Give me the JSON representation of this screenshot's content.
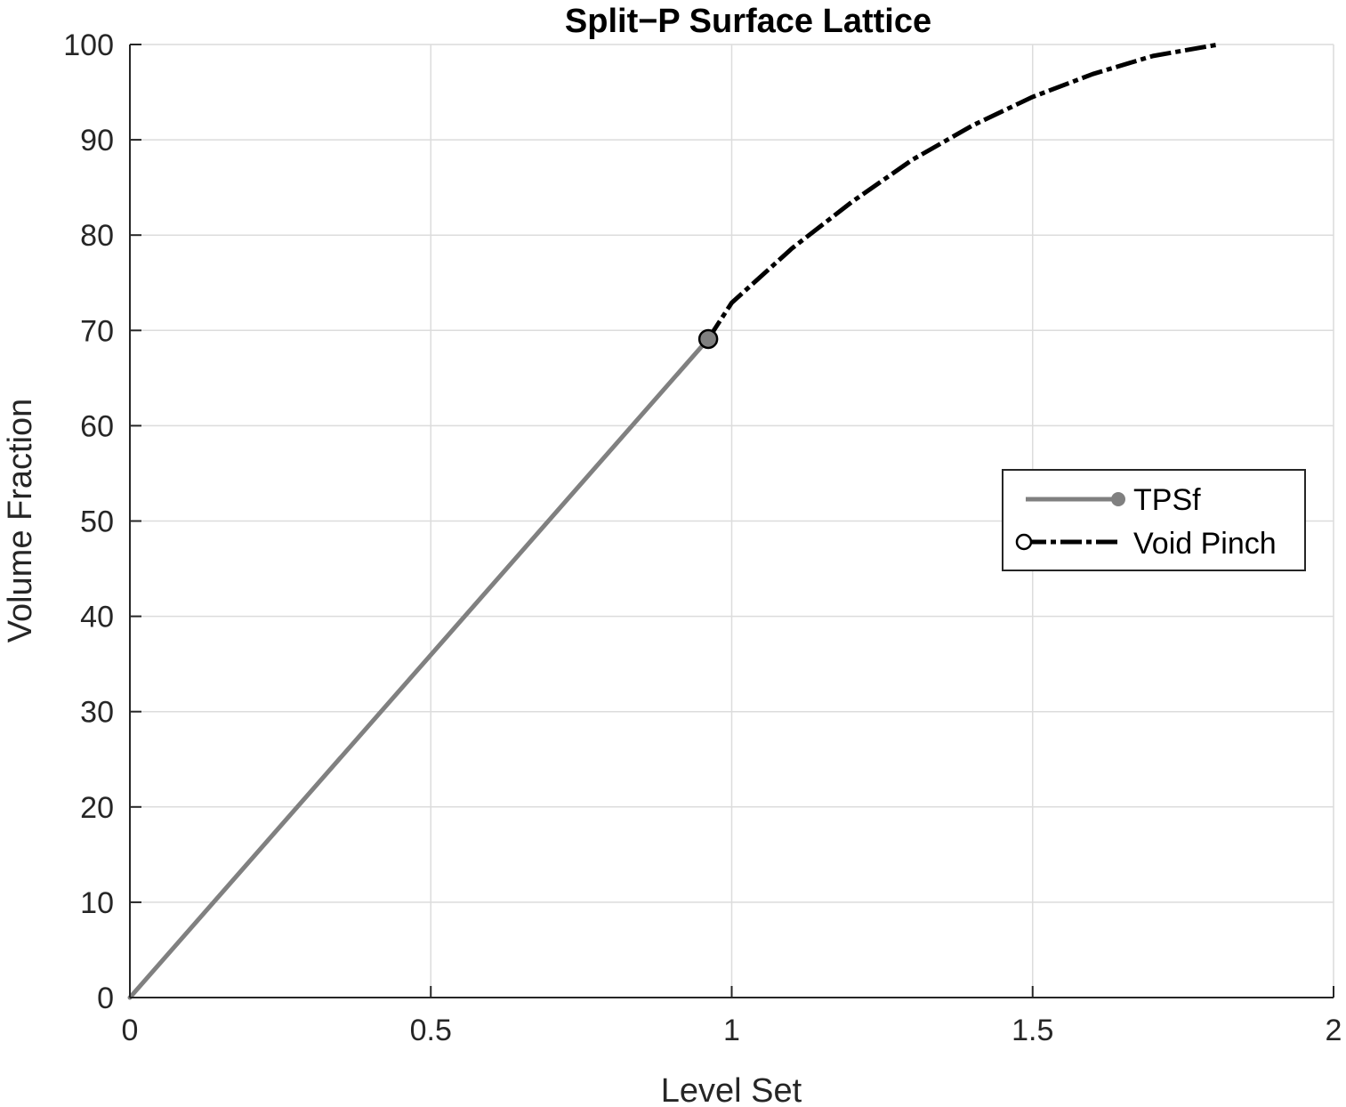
{
  "chart_data": {
    "type": "line",
    "title": "Split−P Surface Lattice",
    "xlabel": "Level Set",
    "ylabel": "Volume Fraction",
    "xlim": [
      0,
      2
    ],
    "ylim": [
      0,
      100
    ],
    "xticks": [
      0,
      0.5,
      1,
      1.5,
      2
    ],
    "xtick_labels": [
      "0",
      "0.5",
      "1",
      "1.5",
      "2"
    ],
    "yticks": [
      0,
      10,
      20,
      30,
      40,
      50,
      60,
      70,
      80,
      90,
      100
    ],
    "ytick_labels": [
      "0",
      "10",
      "20",
      "30",
      "40",
      "50",
      "60",
      "70",
      "80",
      "90",
      "100"
    ],
    "grid": true,
    "legend_position": "right",
    "series": [
      {
        "name": "TPSf",
        "color": "#808080",
        "line_style": "solid",
        "marker": "filled-circle",
        "x": [
          0,
          0.961
        ],
        "y": [
          0,
          69.1
        ]
      },
      {
        "name": "Void Pinch",
        "color": "#000000",
        "line_style": "dash-dot",
        "marker": "open-circle",
        "x": [
          0.961,
          1.0,
          1.1,
          1.2,
          1.3,
          1.4,
          1.5,
          1.6,
          1.7,
          1.8,
          1.81
        ],
        "y": [
          69.1,
          72.9,
          78.6,
          83.5,
          87.9,
          91.5,
          94.5,
          96.9,
          98.8,
          99.9,
          100
        ]
      }
    ]
  }
}
